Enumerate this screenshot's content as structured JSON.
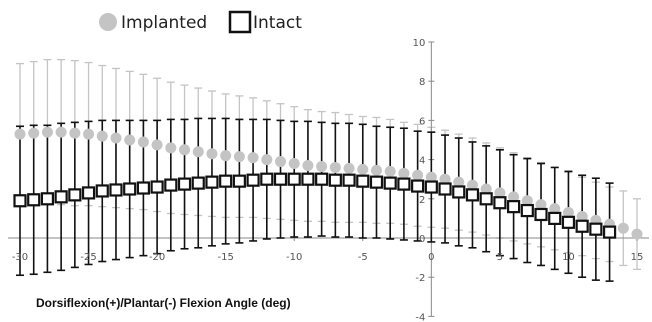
{
  "chart_data": {
    "type": "scatter",
    "xlabel": "Dorsiflexion(+)/Plantar(-) Flexion Angle (deg)",
    "ylabel": "",
    "xlim": [
      -30,
      15
    ],
    "ylim": [
      -4,
      10
    ],
    "x_ticks": [
      -30,
      -25,
      -20,
      -15,
      -10,
      -5,
      0,
      5,
      10,
      15
    ],
    "y_ticks": [
      -4,
      -2,
      0,
      2,
      4,
      6,
      8,
      10
    ],
    "x_tick_labels": [
      "-30",
      "-25",
      "-20",
      "-15",
      "-10",
      "-5",
      "0",
      "5",
      "10",
      "15"
    ],
    "y_tick_labels": [
      "-4",
      "-2",
      "0",
      "2",
      "4",
      "6",
      "8",
      "10"
    ],
    "legend_position": "top-left",
    "error_bars": true,
    "series": [
      {
        "name": "Implanted",
        "marker": "circle",
        "color": "#c4c4c4",
        "x": [
          -30,
          -29,
          -28,
          -27,
          -26,
          -25,
          -24,
          -23,
          -22,
          -21,
          -20,
          -19,
          -18,
          -17,
          -16,
          -15,
          -14,
          -13,
          -12,
          -11,
          -10,
          -9,
          -8,
          -7,
          -6,
          -5,
          -4,
          -3,
          -2,
          -1,
          0,
          1,
          2,
          3,
          4,
          5,
          6,
          7,
          8,
          9,
          10,
          11,
          12,
          13,
          14,
          15
        ],
        "y": [
          5.3,
          5.35,
          5.4,
          5.4,
          5.35,
          5.3,
          5.2,
          5.1,
          5.0,
          4.9,
          4.75,
          4.6,
          4.5,
          4.4,
          4.3,
          4.2,
          4.15,
          4.1,
          4.0,
          3.9,
          3.8,
          3.7,
          3.65,
          3.6,
          3.55,
          3.5,
          3.45,
          3.4,
          3.3,
          3.2,
          3.1,
          3.0,
          2.85,
          2.7,
          2.5,
          2.3,
          2.1,
          1.9,
          1.7,
          1.5,
          1.3,
          1.1,
          0.9,
          0.7,
          0.5,
          0.2
        ],
        "error": [
          3.6,
          3.65,
          3.7,
          3.7,
          3.7,
          3.65,
          3.6,
          3.55,
          3.5,
          3.45,
          3.4,
          3.35,
          3.3,
          3.25,
          3.2,
          3.15,
          3.1,
          3.05,
          3.0,
          2.95,
          2.9,
          2.85,
          2.8,
          2.8,
          2.75,
          2.7,
          2.7,
          2.65,
          2.6,
          2.6,
          2.55,
          2.5,
          2.45,
          2.4,
          2.35,
          2.3,
          2.25,
          2.2,
          2.15,
          2.1,
          2.05,
          2.0,
          1.95,
          1.9,
          1.9,
          1.8
        ]
      },
      {
        "name": "Intact",
        "marker": "square",
        "color": "#111111",
        "x": [
          -30,
          -29,
          -28,
          -27,
          -26,
          -25,
          -24,
          -23,
          -22,
          -21,
          -20,
          -19,
          -18,
          -17,
          -16,
          -15,
          -14,
          -13,
          -12,
          -11,
          -10,
          -9,
          -8,
          -7,
          -6,
          -5,
          -4,
          -3,
          -2,
          -1,
          0,
          1,
          2,
          3,
          4,
          5,
          6,
          7,
          8,
          9,
          10,
          11,
          12,
          13
        ],
        "y": [
          1.9,
          1.95,
          2.0,
          2.1,
          2.2,
          2.3,
          2.4,
          2.45,
          2.5,
          2.55,
          2.6,
          2.7,
          2.75,
          2.8,
          2.85,
          2.9,
          2.9,
          2.95,
          3.0,
          3.0,
          3.0,
          3.0,
          3.0,
          2.95,
          2.95,
          2.9,
          2.85,
          2.8,
          2.75,
          2.65,
          2.6,
          2.5,
          2.35,
          2.2,
          2.0,
          1.8,
          1.6,
          1.4,
          1.2,
          1.0,
          0.8,
          0.6,
          0.45,
          0.3
        ],
        "error": [
          3.8,
          3.8,
          3.75,
          3.75,
          3.7,
          3.65,
          3.6,
          3.55,
          3.5,
          3.45,
          3.4,
          3.35,
          3.3,
          3.3,
          3.25,
          3.2,
          3.15,
          3.1,
          3.05,
          3.0,
          2.95,
          2.95,
          2.9,
          2.9,
          2.9,
          2.9,
          2.85,
          2.85,
          2.85,
          2.8,
          2.8,
          2.75,
          2.75,
          2.7,
          2.7,
          2.7,
          2.65,
          2.65,
          2.6,
          2.6,
          2.6,
          2.6,
          2.6,
          2.5
        ]
      }
    ]
  }
}
